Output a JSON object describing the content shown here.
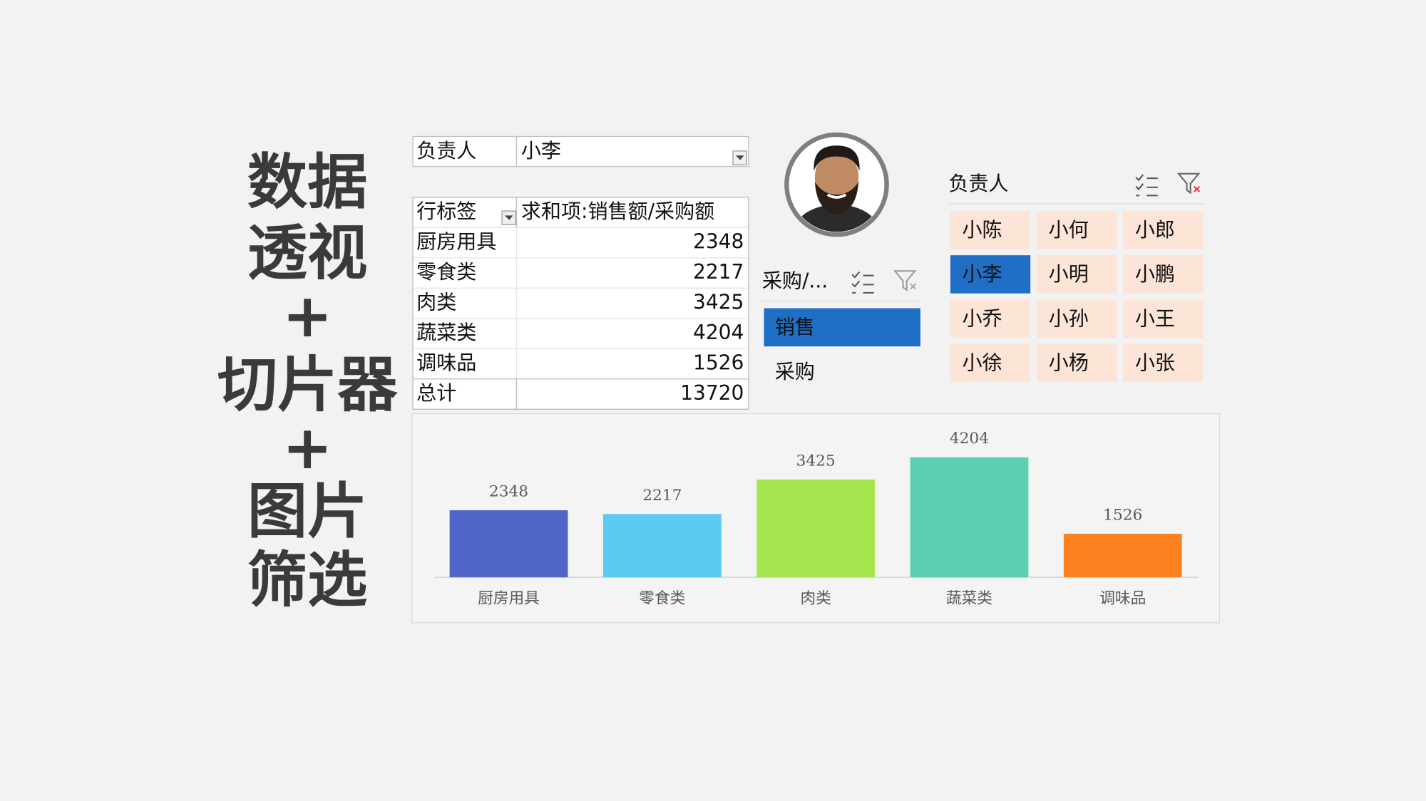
{
  "title": {
    "lines": [
      "数据",
      "透视",
      "+",
      "切片器",
      "+",
      "图片",
      "筛选"
    ]
  },
  "pivot": {
    "filter": {
      "field": "负责人",
      "value": "小李"
    },
    "header": [
      "行标签",
      "求和项:销售额/采购额"
    ],
    "rows": [
      [
        "厨房用具",
        2348
      ],
      [
        "零食类",
        2217
      ],
      [
        "肉类",
        3425
      ],
      [
        "蔬菜类",
        4204
      ],
      [
        "调味品",
        1526
      ]
    ],
    "total": [
      "总计",
      13720
    ]
  },
  "slicers": [
    {
      "title": "采购/...",
      "items": [
        "销售",
        "采购"
      ],
      "selected": 0
    },
    {
      "title": "负责人",
      "items": [
        "小陈",
        "小何",
        "小郎",
        "小李",
        "小明",
        "小鹏",
        "小乔",
        "小孙",
        "小王",
        "小徐",
        "小杨",
        "小张"
      ],
      "selected": 3
    }
  ],
  "chart_data": {
    "type": "bar",
    "categories": [
      "厨房用具",
      "零食类",
      "肉类",
      "蔬菜类",
      "调味品"
    ],
    "values": [
      2348,
      2217,
      3425,
      4204,
      1526
    ],
    "colors": [
      "#5065c8",
      "#5ccbf2",
      "#a6e64f",
      "#5ccfb0",
      "#fd8322"
    ]
  }
}
